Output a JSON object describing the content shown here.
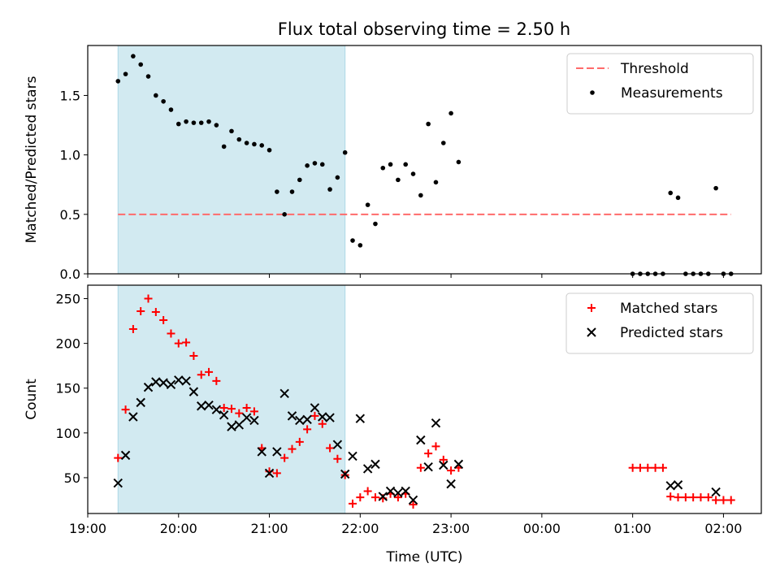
{
  "title": "Flux total observing time = 2.50 h",
  "colors": {
    "shade": "#add8e6",
    "threshold": "#ff6b6b",
    "measurements": "#000000",
    "matched": "#ff0000",
    "predicted": "#000000"
  },
  "chart_data": [
    {
      "type": "scatter",
      "ylabel": "Matched/Predicted stars",
      "ylim": [
        0,
        1.92
      ],
      "yticks": [
        0.0,
        0.5,
        1.0,
        1.5
      ],
      "ytick_labels": [
        "0.0",
        "0.5",
        "1.0",
        "1.5"
      ],
      "xlim": [
        "19:00",
        "02:25"
      ],
      "shaded_interval": [
        "19:20",
        "21:50"
      ],
      "legend_position": "top-right",
      "threshold": {
        "name": "Threshold",
        "value": 0.5,
        "x_range": [
          "19:20",
          "02:05"
        ]
      },
      "series": [
        {
          "name": "Measurements",
          "points": [
            [
              "19:20",
              1.62
            ],
            [
              "19:25",
              1.68
            ],
            [
              "19:30",
              1.83
            ],
            [
              "19:35",
              1.76
            ],
            [
              "19:40",
              1.66
            ],
            [
              "19:45",
              1.5
            ],
            [
              "19:50",
              1.45
            ],
            [
              "19:55",
              1.38
            ],
            [
              "20:00",
              1.26
            ],
            [
              "20:05",
              1.28
            ],
            [
              "20:10",
              1.27
            ],
            [
              "20:15",
              1.27
            ],
            [
              "20:20",
              1.28
            ],
            [
              "20:25",
              1.25
            ],
            [
              "20:30",
              1.07
            ],
            [
              "20:35",
              1.2
            ],
            [
              "20:40",
              1.13
            ],
            [
              "20:45",
              1.1
            ],
            [
              "20:50",
              1.09
            ],
            [
              "20:55",
              1.08
            ],
            [
              "21:00",
              1.04
            ],
            [
              "21:05",
              0.69
            ],
            [
              "21:10",
              0.5
            ],
            [
              "21:15",
              0.69
            ],
            [
              "21:20",
              0.79
            ],
            [
              "21:25",
              0.91
            ],
            [
              "21:30",
              0.93
            ],
            [
              "21:35",
              0.92
            ],
            [
              "21:40",
              0.71
            ],
            [
              "21:45",
              0.81
            ],
            [
              "21:50",
              1.02
            ],
            [
              "21:55",
              0.28
            ],
            [
              "22:00",
              0.24
            ],
            [
              "22:05",
              0.58
            ],
            [
              "22:10",
              0.42
            ],
            [
              "22:15",
              0.89
            ],
            [
              "22:20",
              0.92
            ],
            [
              "22:25",
              0.79
            ],
            [
              "22:30",
              0.92
            ],
            [
              "22:35",
              0.84
            ],
            [
              "22:40",
              0.66
            ],
            [
              "22:45",
              1.26
            ],
            [
              "22:50",
              0.77
            ],
            [
              "22:55",
              1.1
            ],
            [
              "23:00",
              1.35
            ],
            [
              "23:05",
              0.94
            ],
            [
              "01:00",
              0.0
            ],
            [
              "01:05",
              0.0
            ],
            [
              "01:10",
              0.0
            ],
            [
              "01:15",
              0.0
            ],
            [
              "01:20",
              0.0
            ],
            [
              "01:25",
              0.68
            ],
            [
              "01:30",
              0.64
            ],
            [
              "01:35",
              0.0
            ],
            [
              "01:40",
              0.0
            ],
            [
              "01:45",
              0.0
            ],
            [
              "01:50",
              0.0
            ],
            [
              "01:55",
              0.72
            ],
            [
              "02:00",
              0.0
            ],
            [
              "02:05",
              0.0
            ]
          ]
        }
      ]
    },
    {
      "type": "scatter",
      "xlabel": "Time (UTC)",
      "ylabel": "Count",
      "ylim": [
        10,
        265
      ],
      "yticks": [
        50,
        100,
        150,
        200,
        250
      ],
      "ytick_labels": [
        "50",
        "100",
        "150",
        "200",
        "250"
      ],
      "xlim": [
        "19:00",
        "02:25"
      ],
      "xticks": [
        "19:00",
        "20:00",
        "21:00",
        "22:00",
        "23:00",
        "00:00",
        "01:00",
        "02:00"
      ],
      "xtick_labels": [
        "19:00",
        "20:00",
        "21:00",
        "22:00",
        "23:00",
        "00:00",
        "01:00",
        "02:00"
      ],
      "shaded_interval": [
        "19:20",
        "21:50"
      ],
      "legend_position": "top-right",
      "series": [
        {
          "name": "Matched stars",
          "marker": "+",
          "points": [
            [
              "19:20",
              72
            ],
            [
              "19:25",
              126
            ],
            [
              "19:30",
              216
            ],
            [
              "19:35",
              236
            ],
            [
              "19:40",
              250
            ],
            [
              "19:45",
              235
            ],
            [
              "19:50",
              226
            ],
            [
              "19:55",
              211
            ],
            [
              "20:00",
              200
            ],
            [
              "20:05",
              201
            ],
            [
              "20:10",
              186
            ],
            [
              "20:15",
              165
            ],
            [
              "20:20",
              168
            ],
            [
              "20:25",
              158
            ],
            [
              "20:30",
              128
            ],
            [
              "20:35",
              127
            ],
            [
              "20:40",
              122
            ],
            [
              "20:45",
              128
            ],
            [
              "20:50",
              124
            ],
            [
              "20:55",
              83
            ],
            [
              "21:00",
              57
            ],
            [
              "21:05",
              55
            ],
            [
              "21:10",
              72
            ],
            [
              "21:15",
              82
            ],
            [
              "21:20",
              90
            ],
            [
              "21:25",
              104
            ],
            [
              "21:30",
              119
            ],
            [
              "21:35",
              110
            ],
            [
              "21:40",
              83
            ],
            [
              "21:45",
              71
            ],
            [
              "21:50",
              53
            ],
            [
              "21:55",
              21
            ],
            [
              "22:00",
              28
            ],
            [
              "22:05",
              35
            ],
            [
              "22:10",
              28
            ],
            [
              "22:15",
              27
            ],
            [
              "22:20",
              32
            ],
            [
              "22:25",
              28
            ],
            [
              "22:30",
              32
            ],
            [
              "22:35",
              20
            ],
            [
              "22:40",
              61
            ],
            [
              "22:45",
              77
            ],
            [
              "22:50",
              85
            ],
            [
              "22:55",
              70
            ],
            [
              "23:00",
              58
            ],
            [
              "23:05",
              61
            ],
            [
              "01:00",
              61
            ],
            [
              "01:05",
              61
            ],
            [
              "01:10",
              61
            ],
            [
              "01:15",
              61
            ],
            [
              "01:20",
              61
            ],
            [
              "01:25",
              29
            ],
            [
              "01:30",
              28
            ],
            [
              "01:35",
              28
            ],
            [
              "01:40",
              28
            ],
            [
              "01:45",
              28
            ],
            [
              "01:50",
              28
            ],
            [
              "01:55",
              25
            ],
            [
              "02:00",
              25
            ],
            [
              "02:05",
              25
            ]
          ]
        },
        {
          "name": "Predicted stars",
          "marker": "x",
          "points": [
            [
              "19:20",
              44
            ],
            [
              "19:25",
              75
            ],
            [
              "19:30",
              118
            ],
            [
              "19:35",
              134
            ],
            [
              "19:40",
              151
            ],
            [
              "19:45",
              157
            ],
            [
              "19:50",
              156
            ],
            [
              "19:55",
              154
            ],
            [
              "20:00",
              159
            ],
            [
              "20:05",
              158
            ],
            [
              "20:10",
              146
            ],
            [
              "20:15",
              130
            ],
            [
              "20:20",
              131
            ],
            [
              "20:25",
              126
            ],
            [
              "20:30",
              120
            ],
            [
              "20:35",
              107
            ],
            [
              "20:40",
              109
            ],
            [
              "20:45",
              117
            ],
            [
              "20:50",
              114
            ],
            [
              "20:55",
              79
            ],
            [
              "21:00",
              55
            ],
            [
              "21:05",
              79
            ],
            [
              "21:10",
              144
            ],
            [
              "21:15",
              119
            ],
            [
              "21:20",
              114
            ],
            [
              "21:25",
              115
            ],
            [
              "21:30",
              128
            ],
            [
              "21:35",
              118
            ],
            [
              "21:40",
              117
            ],
            [
              "21:45",
              87
            ],
            [
              "21:50",
              54
            ],
            [
              "21:55",
              74
            ],
            [
              "22:00",
              116
            ],
            [
              "22:05",
              60
            ],
            [
              "22:10",
              65
            ],
            [
              "22:15",
              29
            ],
            [
              "22:20",
              35
            ],
            [
              "22:25",
              33
            ],
            [
              "22:30",
              35
            ],
            [
              "22:35",
              25
            ],
            [
              "22:40",
              92
            ],
            [
              "22:45",
              62
            ],
            [
              "22:50",
              111
            ],
            [
              "22:55",
              64
            ],
            [
              "23:00",
              43
            ],
            [
              "23:05",
              65
            ],
            [
              "01:25",
              41
            ],
            [
              "01:30",
              42
            ],
            [
              "01:55",
              34
            ]
          ]
        }
      ]
    }
  ]
}
